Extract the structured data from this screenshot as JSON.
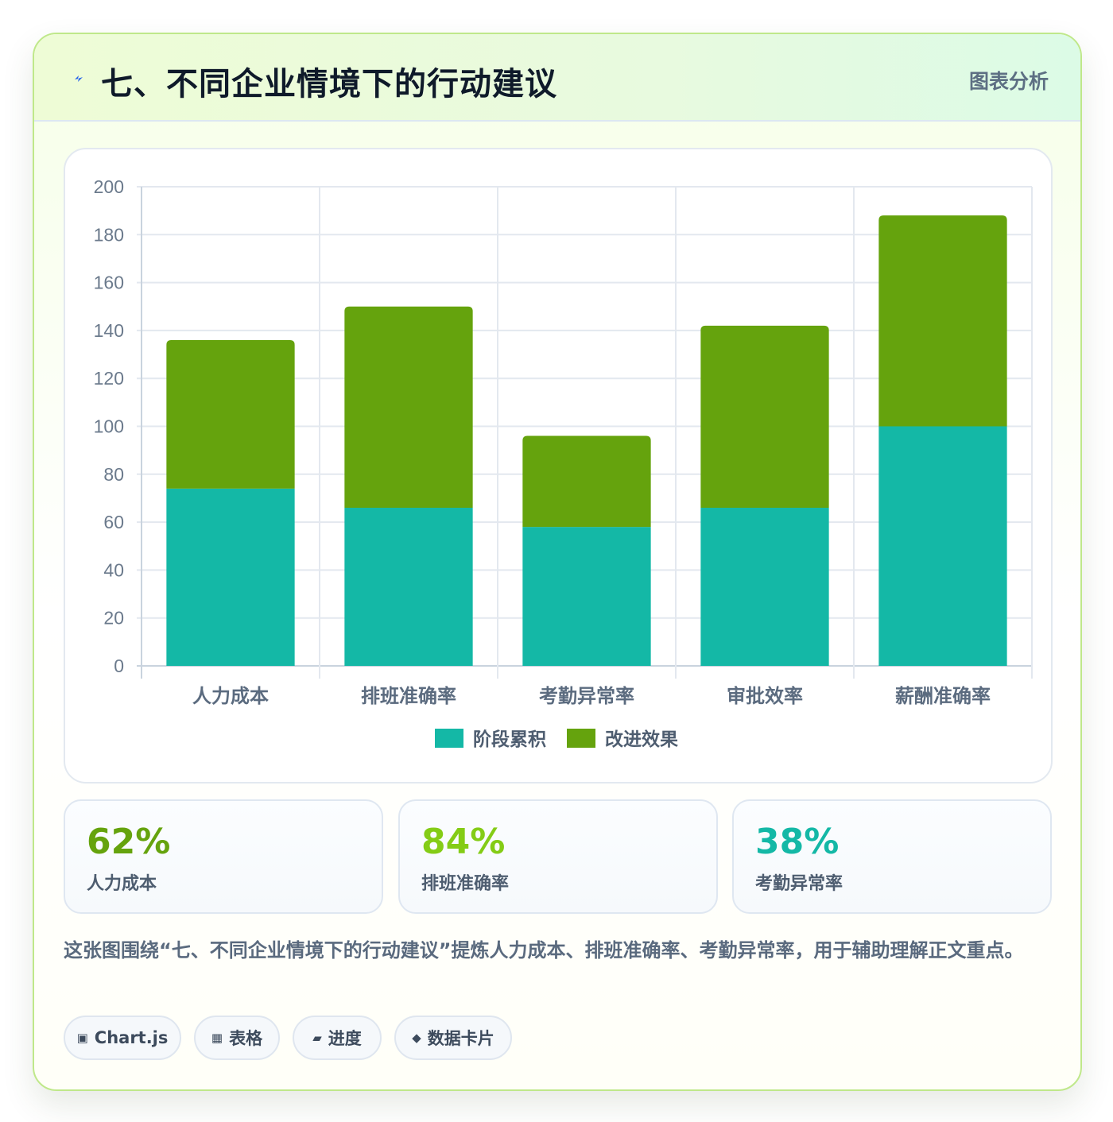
{
  "header": {
    "title": "七、不同企业情境下的行动建议",
    "tag": "图表分析",
    "icon": "lightning-icon"
  },
  "chart_data": {
    "type": "bar",
    "stacked": true,
    "categories": [
      "人力成本",
      "排班准确率",
      "考勤异常率",
      "审批效率",
      "薪酬准确率"
    ],
    "series": [
      {
        "name": "阶段累积",
        "color": "#14b8a6",
        "values": [
          74,
          66,
          58,
          66,
          100
        ]
      },
      {
        "name": "改进效果",
        "color": "#65a30d",
        "values": [
          62,
          84,
          38,
          76,
          88
        ]
      }
    ],
    "ylim": [
      0,
      200
    ],
    "yticks": [
      0,
      20,
      40,
      60,
      80,
      100,
      120,
      140,
      160,
      180,
      200
    ],
    "grid": true,
    "legend": "bottom"
  },
  "kpis": [
    {
      "value": "62%",
      "label": "人力成本",
      "color": "#65a30d"
    },
    {
      "value": "84%",
      "label": "排班准确率",
      "color": "#84cc16"
    },
    {
      "value": "38%",
      "label": "考勤异常率",
      "color": "#14b8a6"
    }
  ],
  "caption": "这张图围绕“七、不同企业情境下的行动建议”提炼人力成本、排班准确率、考勤异常率，用于辅助理解正文重点。",
  "chips": [
    {
      "icon": "▣",
      "label": "Chart.js"
    },
    {
      "icon": "▦",
      "label": "表格"
    },
    {
      "icon": "▰",
      "label": "进度"
    },
    {
      "icon": "◆",
      "label": "数据卡片"
    }
  ]
}
